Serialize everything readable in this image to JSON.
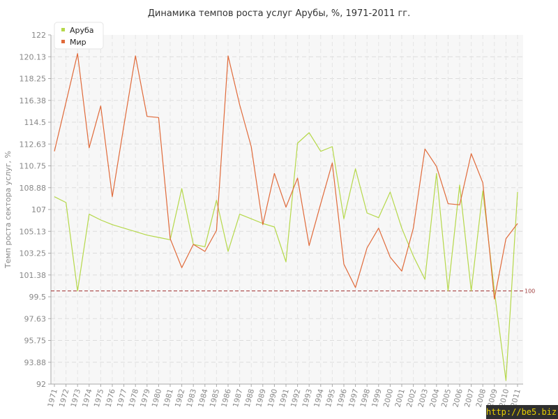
{
  "chart_data": {
    "type": "line",
    "title": "Динамика темпов роста услуг Арубы, %, 1971-2011 гг.",
    "xlabel": "",
    "ylabel": "Темп роста сектора услуг, %",
    "ylim": [
      92,
      122
    ],
    "yticks": [
      "122",
      "120.13",
      "118.25",
      "116.38",
      "114.5",
      "112.63",
      "110.75",
      "108.88",
      "107",
      "105.13",
      "103.25",
      "101.38",
      "99.5",
      "97.63",
      "95.75",
      "93.88",
      "92"
    ],
    "categories": [
      "1971",
      "1972",
      "1973",
      "1974",
      "1975",
      "1976",
      "1977",
      "1978",
      "1979",
      "1980",
      "1981",
      "1982",
      "1983",
      "1984",
      "1985",
      "1986",
      "1987",
      "1988",
      "1989",
      "1990",
      "1991",
      "1992",
      "1993",
      "1994",
      "1995",
      "1996",
      "1997",
      "1998",
      "1999",
      "2000",
      "2001",
      "2002",
      "2003",
      "2004",
      "2005",
      "2006",
      "2007",
      "2008",
      "2009",
      "2010",
      "2011"
    ],
    "series": [
      {
        "name": "Аруба",
        "color": "#b5d84a",
        "values": [
          108.1,
          107.6,
          100,
          106.6,
          106.1,
          105.7,
          105.4,
          105.1,
          104.8,
          104.6,
          104.4,
          108.8,
          104.0,
          103.8,
          107.8,
          103.4,
          106.6,
          106.2,
          105.8,
          105.5,
          102.5,
          112.7,
          113.6,
          112.0,
          112.4,
          106.2,
          110.5,
          106.7,
          106.3,
          108.5,
          105.4,
          103.0,
          101.0,
          110.1,
          100,
          109.1,
          100,
          108.6,
          100.0,
          92.3,
          108.5
        ]
      },
      {
        "name": "Мир",
        "color": "#e06a3a",
        "values": [
          112.0,
          116.2,
          120.4,
          112.3,
          115.9,
          108.1,
          114.2,
          120.2,
          115.0,
          114.9,
          104.5,
          102.0,
          104.0,
          103.4,
          105.2,
          120.2,
          116.0,
          112.4,
          105.7,
          110.1,
          107.2,
          109.7,
          103.9,
          107.5,
          111.0,
          102.3,
          100.3,
          103.7,
          105.4,
          102.9,
          101.7,
          105.4,
          112.2,
          110.7,
          107.5,
          107.4,
          111.8,
          109.3,
          99.3,
          104.5,
          105.8
        ]
      }
    ],
    "reference_line": {
      "value": 100,
      "label": "100",
      "color": "#a03030"
    },
    "grid": true,
    "legend": "top-left"
  }
}
